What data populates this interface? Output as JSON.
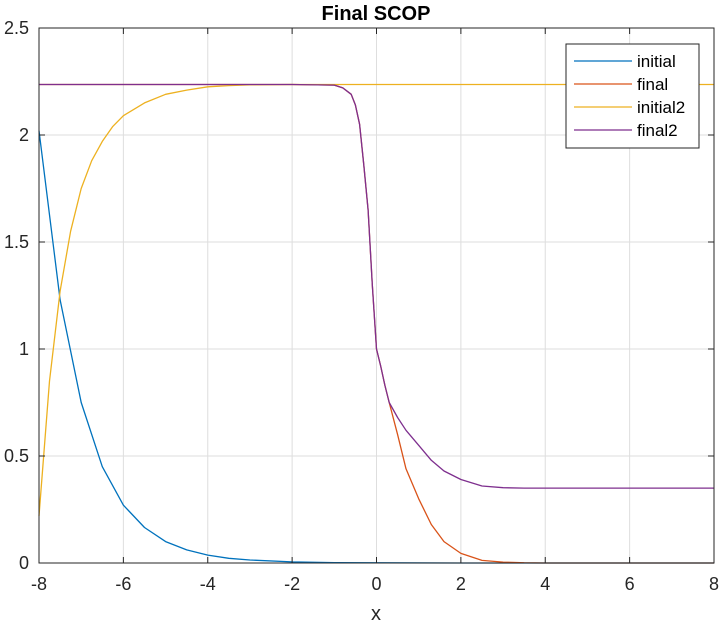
{
  "chart_data": {
    "type": "line",
    "title": "Final SCOP",
    "xlabel": "x",
    "ylabel": "",
    "xlim": [
      -8,
      8
    ],
    "ylim": [
      0,
      2.5
    ],
    "x_ticks": [
      -8,
      -6,
      -4,
      -2,
      0,
      2,
      4,
      6,
      8
    ],
    "x_tick_labels": [
      "-8",
      "-6",
      "-4",
      "-2",
      "0",
      "2",
      "4",
      "6",
      "8"
    ],
    "y_ticks": [
      0,
      0.5,
      1,
      1.5,
      2,
      2.5
    ],
    "y_tick_labels": [
      "0",
      "0.5",
      "1",
      "1.5",
      "2",
      "2.5"
    ],
    "grid": true,
    "legend_position": "top-right",
    "series": [
      {
        "name": "initial",
        "color": "#0072BD",
        "x": [
          -8,
          -7.5,
          -7,
          -6.5,
          -6,
          -5.5,
          -5,
          -4.5,
          -4,
          -3.5,
          -3,
          -2,
          -1,
          0,
          2,
          4,
          6,
          8
        ],
        "y": [
          2.02,
          1.23,
          0.75,
          0.45,
          0.27,
          0.166,
          0.1,
          0.061,
          0.037,
          0.022,
          0.014,
          0.005,
          0.002,
          0.001,
          0.0,
          0.0,
          0.0,
          0.0
        ]
      },
      {
        "name": "final",
        "color": "#D95319",
        "x": [
          -8,
          -2,
          -1,
          -0.8,
          -0.6,
          -0.5,
          -0.4,
          -0.3,
          -0.2,
          -0.1,
          0,
          0.1,
          0.2,
          0.3,
          0.5,
          0.7,
          1.0,
          1.3,
          1.6,
          2.0,
          2.5,
          3.0,
          3.5,
          4,
          6,
          8
        ],
        "y": [
          2.236,
          2.236,
          2.233,
          2.22,
          2.19,
          2.14,
          2.05,
          1.86,
          1.65,
          1.3,
          1.0,
          0.92,
          0.83,
          0.75,
          0.6,
          0.44,
          0.3,
          0.18,
          0.1,
          0.045,
          0.012,
          0.004,
          0.001,
          0.0,
          0.0,
          0.0
        ]
      },
      {
        "name": "initial2",
        "color": "#EDB120",
        "x": [
          -8,
          -7.75,
          -7.5,
          -7.25,
          -7,
          -6.75,
          -6.5,
          -6.25,
          -6,
          -5.5,
          -5,
          -4.5,
          -4,
          -3.5,
          -3,
          -2,
          -1,
          0,
          2,
          4,
          6,
          8
        ],
        "y": [
          0.22,
          0.85,
          1.27,
          1.55,
          1.75,
          1.88,
          1.97,
          2.04,
          2.09,
          2.15,
          2.19,
          2.21,
          2.225,
          2.231,
          2.234,
          2.236,
          2.236,
          2.236,
          2.236,
          2.236,
          2.236,
          2.236
        ]
      },
      {
        "name": "final2",
        "color": "#7E2F8E",
        "x": [
          -8,
          -2,
          -1,
          -0.8,
          -0.6,
          -0.5,
          -0.4,
          -0.3,
          -0.2,
          -0.1,
          0,
          0.1,
          0.2,
          0.3,
          0.5,
          0.7,
          1.0,
          1.3,
          1.6,
          2.0,
          2.5,
          3.0,
          3.5,
          4,
          6,
          8
        ],
        "y": [
          2.236,
          2.236,
          2.233,
          2.22,
          2.19,
          2.14,
          2.05,
          1.86,
          1.65,
          1.3,
          1.0,
          0.92,
          0.83,
          0.75,
          0.68,
          0.62,
          0.55,
          0.48,
          0.43,
          0.39,
          0.36,
          0.352,
          0.35,
          0.35,
          0.35,
          0.35
        ]
      }
    ]
  }
}
